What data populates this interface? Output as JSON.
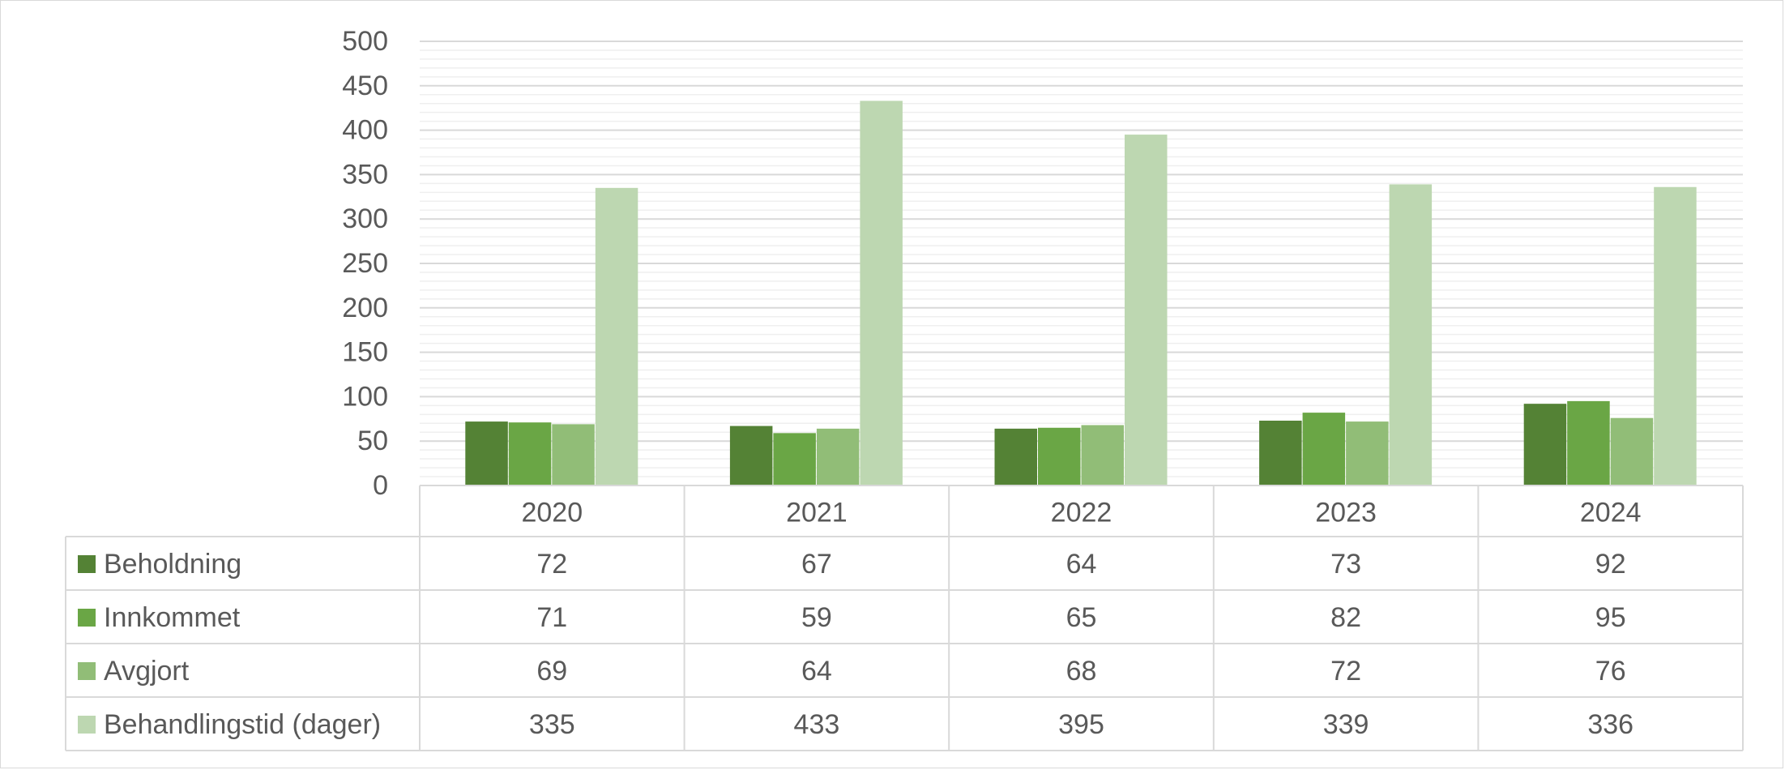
{
  "chart_data": {
    "type": "bar",
    "categories": [
      "2020",
      "2021",
      "2022",
      "2023",
      "2024"
    ],
    "series": [
      {
        "name": "Beholdning",
        "values": [
          72,
          67,
          64,
          73,
          92
        ],
        "color": "#548235"
      },
      {
        "name": "Innkommet",
        "values": [
          71,
          59,
          65,
          82,
          95
        ],
        "color": "#6aa645"
      },
      {
        "name": "Avgjort",
        "values": [
          69,
          64,
          68,
          72,
          76
        ],
        "color": "#91bd77"
      },
      {
        "name": "Behandlingstid (dager)",
        "values": [
          335,
          433,
          395,
          339,
          336
        ],
        "color": "#bdd7b1"
      }
    ],
    "ylim": [
      0,
      500
    ],
    "yticks": [
      0,
      50,
      100,
      150,
      200,
      250,
      300,
      350,
      400,
      450,
      500
    ],
    "grid": true,
    "legend": "data-table",
    "gridline_color": "#d9d9d9",
    "minor_gridline_color": "#efefef",
    "text_color": "#595959"
  }
}
